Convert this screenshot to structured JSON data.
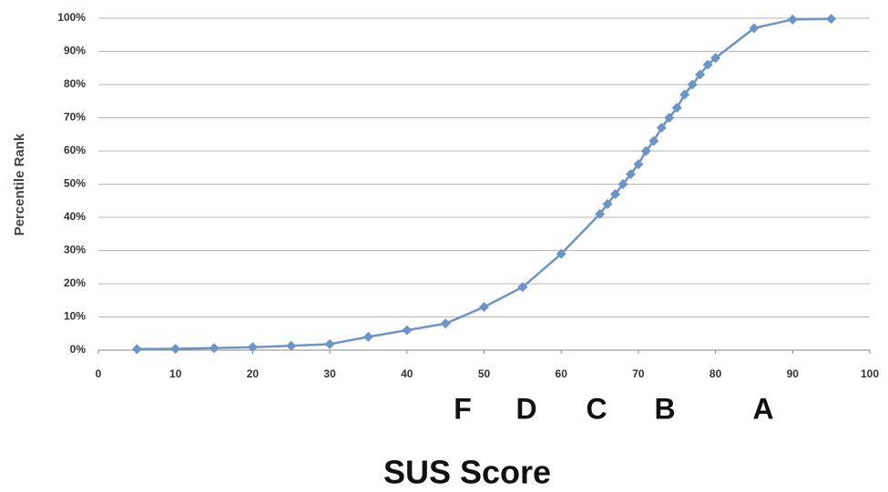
{
  "chart_data": {
    "type": "line",
    "x_label": "SUS Score",
    "y_label": "Percentile Rank",
    "x": [
      5,
      10,
      15,
      20,
      25,
      30,
      35,
      40,
      45,
      50,
      55,
      60,
      65,
      66,
      67,
      68,
      69,
      70,
      71,
      72,
      73,
      74,
      75,
      76,
      77,
      78,
      79,
      80,
      85,
      90,
      95
    ],
    "series": [
      {
        "color": "#6b94c8",
        "values": [
          0.3,
          0.4,
          0.6,
          0.9,
          1.3,
          1.8,
          4,
          6,
          8,
          13,
          19,
          29,
          41,
          44,
          47,
          50,
          53,
          56,
          60,
          63,
          67,
          70,
          73,
          77,
          80,
          83,
          86,
          88,
          97,
          99.6,
          99.8
        ]
      }
    ],
    "xlim": [
      0,
      100
    ],
    "xticks": [
      0,
      10,
      20,
      30,
      40,
      50,
      60,
      70,
      80,
      90,
      100
    ],
    "ylim": [
      0,
      100
    ],
    "yticks": [
      {
        "value": 0,
        "label": "0%"
      },
      {
        "value": 10,
        "label": "10%"
      },
      {
        "value": 20,
        "label": "20%"
      },
      {
        "value": 30,
        "label": "30%"
      },
      {
        "value": 40,
        "label": "40%"
      },
      {
        "value": 50,
        "label": "50%"
      },
      {
        "value": 60,
        "label": "60%"
      },
      {
        "value": 70,
        "label": "70%"
      },
      {
        "value": 80,
        "label": "80%"
      },
      {
        "value": 90,
        "label": "90%"
      },
      {
        "value": 100,
        "label": "100%"
      }
    ],
    "grid": true,
    "annotations": [
      "F",
      "D",
      "C",
      "B",
      "A"
    ]
  }
}
